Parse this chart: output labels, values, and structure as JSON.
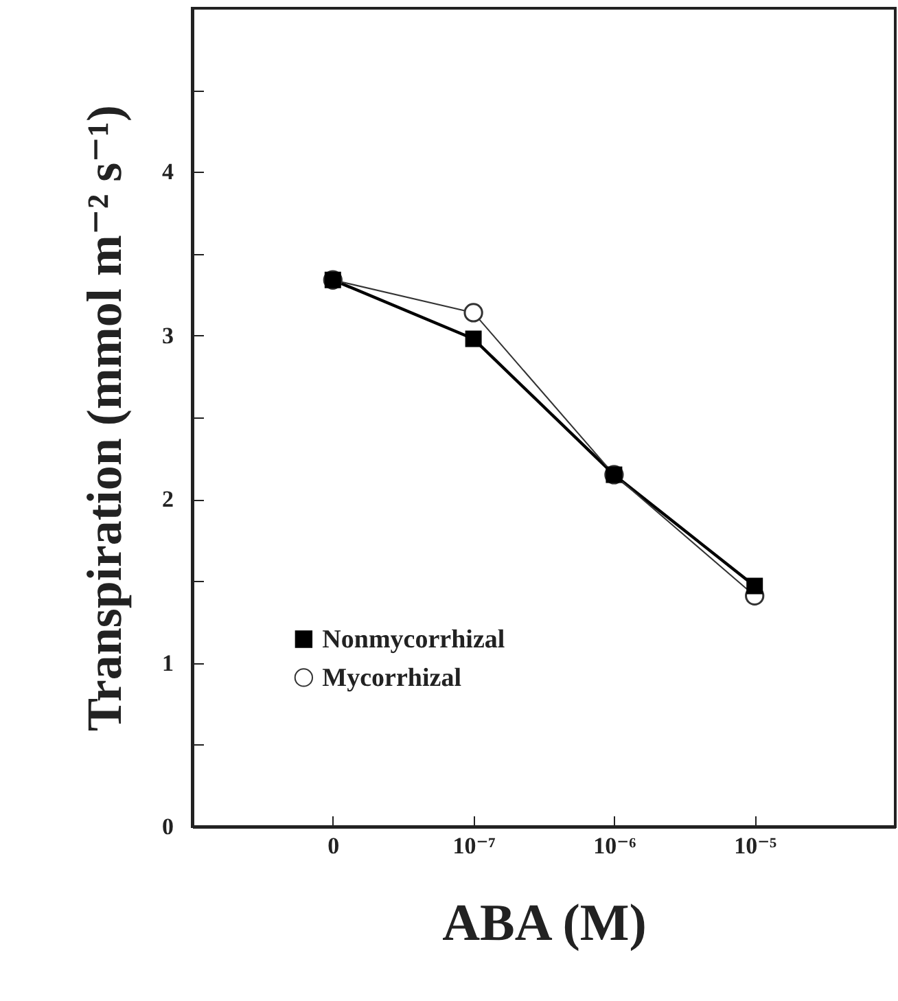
{
  "chart_data": {
    "type": "line",
    "xlabel": "ABA (M)",
    "ylabel": "Transpiration (mmol m⁻² s⁻¹)",
    "categories": [
      "0",
      "10⁻⁷",
      "10⁻⁶",
      "10⁻⁵"
    ],
    "series": [
      {
        "name": "Nonmycorrhizal",
        "color": "#000000",
        "marker": "square",
        "values": [
          3.34,
          2.98,
          2.15,
          1.47
        ]
      },
      {
        "name": "Mycorrhizal",
        "color": "#333333",
        "marker": "circle",
        "values": [
          3.34,
          3.14,
          2.15,
          1.41
        ]
      }
    ],
    "ylim": [
      0,
      5
    ],
    "yticks": [
      0,
      {
        "value": 0.5,
        "label": null
      },
      1,
      {
        "value": 1.5,
        "label": null
      },
      2,
      {
        "value": 2.5,
        "label": null
      },
      3,
      {
        "value": 3.5,
        "label": null
      },
      4,
      {
        "value": 4.5,
        "label": null
      },
      {
        "value": 5,
        "label": null
      }
    ],
    "grid": false,
    "legend": "left"
  }
}
